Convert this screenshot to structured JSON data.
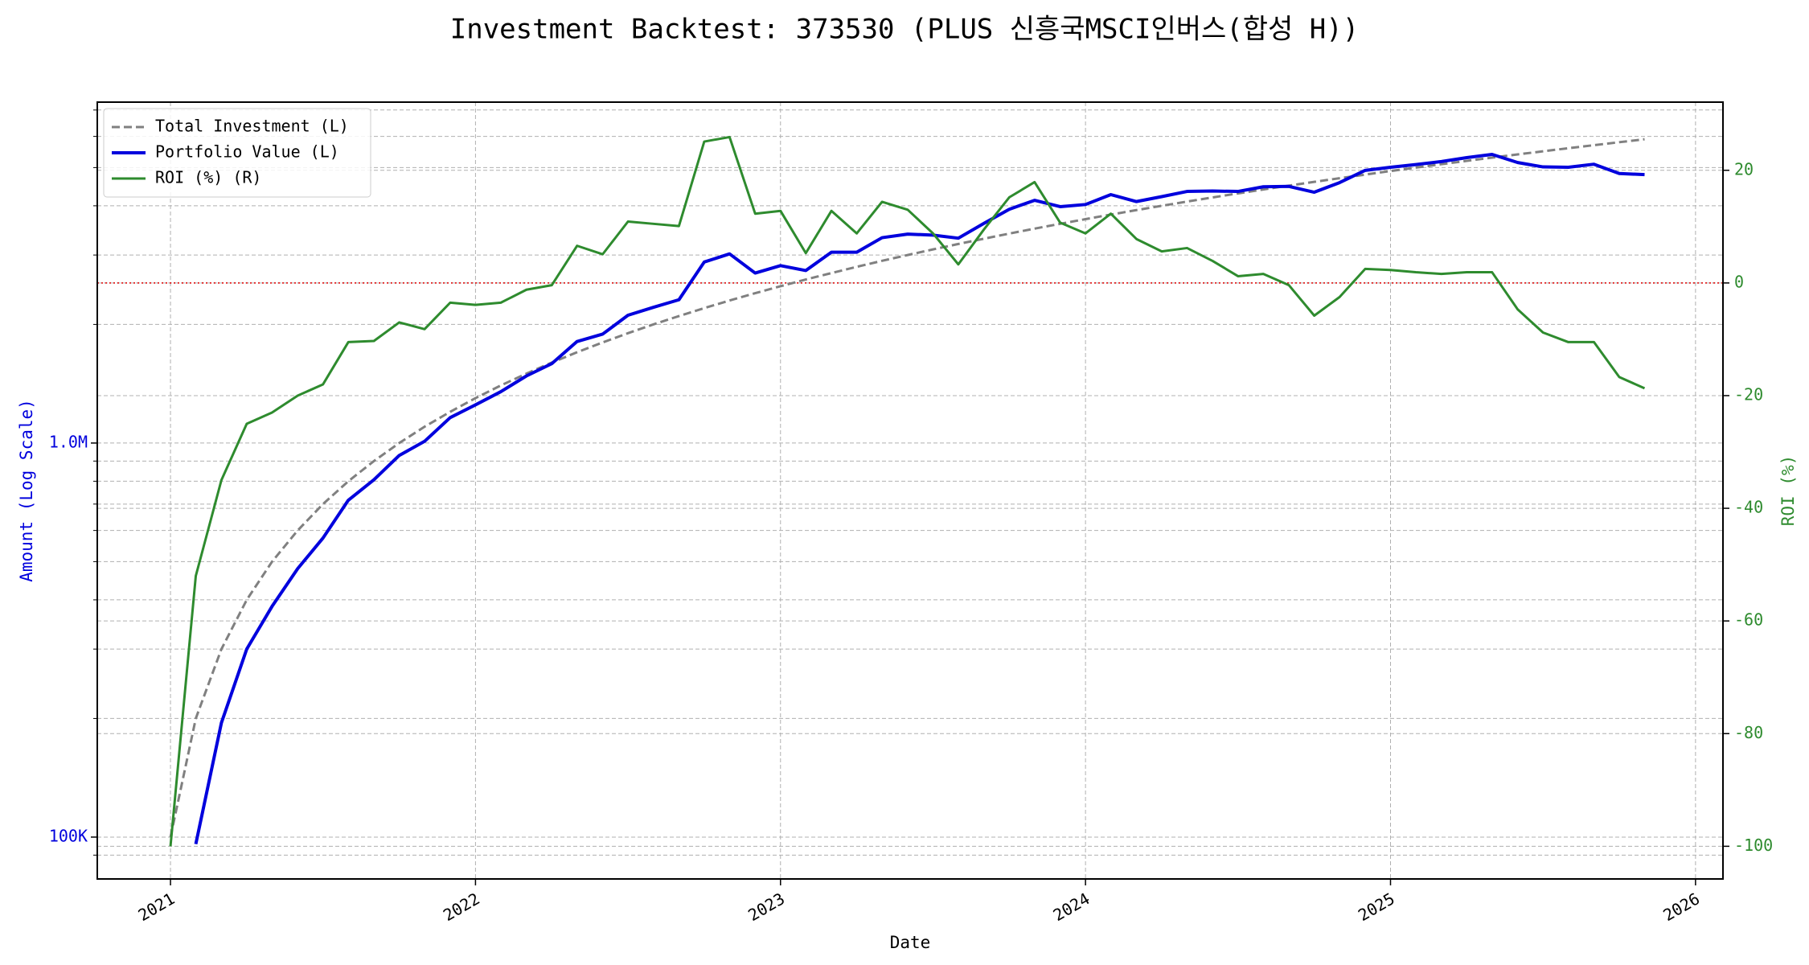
{
  "chart_data": {
    "type": "line",
    "title": "Investment Backtest: 373530 (PLUS 신흥국MSCI인버스(합성 H))",
    "xlabel": "Date",
    "ylabel": "Amount (Log Scale)",
    "y2label": "ROI (%)",
    "ylog": true,
    "grid": true,
    "legend": "upper left",
    "xlim": [
      2020.76,
      2026.09
    ],
    "xticks": [
      2021,
      2022,
      2023,
      2024,
      2025,
      2026
    ],
    "ylim": [
      78300,
      7330000
    ],
    "yticks": [
      {
        "value": 100000,
        "label": "100K"
      },
      {
        "value": 1000000,
        "label": "1.0M"
      }
    ],
    "yticks_minor": [
      90000,
      200000,
      300000,
      400000,
      500000,
      600000,
      700000,
      800000,
      900000,
      2000000,
      3000000,
      4000000,
      5000000,
      6000000,
      7000000
    ],
    "y2lim": [
      -105.8,
      32.1
    ],
    "y2ticks": [
      -100,
      -80,
      -60,
      -40,
      -20,
      0,
      20
    ],
    "reference_line": {
      "axis": "y2",
      "value": 0,
      "color": "#dd0000"
    },
    "x": [
      2021.0,
      2021.083,
      2021.167,
      2021.25,
      2021.333,
      2021.417,
      2021.5,
      2021.583,
      2021.667,
      2021.75,
      2021.833,
      2021.917,
      2022.0,
      2022.083,
      2022.167,
      2022.25,
      2022.333,
      2022.417,
      2022.5,
      2022.583,
      2022.667,
      2022.75,
      2022.833,
      2022.917,
      2023.0,
      2023.083,
      2023.167,
      2023.25,
      2023.333,
      2023.417,
      2023.5,
      2023.583,
      2023.667,
      2023.75,
      2023.833,
      2023.917,
      2024.0,
      2024.083,
      2024.167,
      2024.25,
      2024.333,
      2024.417,
      2024.5,
      2024.583,
      2024.667,
      2024.75,
      2024.833,
      2024.917,
      2025.0,
      2025.083,
      2025.167,
      2025.25,
      2025.333,
      2025.417,
      2025.5,
      2025.583,
      2025.667,
      2025.75,
      2025.833
    ],
    "series": [
      {
        "name": "Total Investment (L)",
        "color": "#808080",
        "linestyle": "dashed",
        "linewidth": 3,
        "axis": "y",
        "values": [
          100000,
          200000,
          300000,
          400000,
          500000,
          600000,
          700000,
          800000,
          900000,
          1000000,
          1100000,
          1200000,
          1300000,
          1400000,
          1500000,
          1600000,
          1700000,
          1800000,
          1900000,
          2000000,
          2100000,
          2200000,
          2300000,
          2400000,
          2500000,
          2600000,
          2700000,
          2800000,
          2900000,
          3000000,
          3100000,
          3200000,
          3300000,
          3400000,
          3500000,
          3600000,
          3700000,
          3800000,
          3900000,
          4000000,
          4100000,
          4200000,
          4300000,
          4400000,
          4500000,
          4600000,
          4700000,
          4800000,
          4900000,
          5000000,
          5100000,
          5200000,
          5300000,
          5400000,
          5500000,
          5600000,
          5700000,
          5800000,
          5900000
        ]
      },
      {
        "name": "Portfolio Value (L)",
        "color": "#0000dd",
        "linestyle": "solid",
        "linewidth": 4,
        "axis": "y",
        "values": [
          null,
          96000,
          195000,
          300000,
          385000,
          480000,
          574000,
          716000,
          807000,
          930000,
          1010000,
          1160000,
          1250000,
          1350000,
          1480000,
          1590000,
          1810000,
          1890000,
          2110000,
          2210000,
          2310000,
          2880000,
          3020000,
          2700000,
          2820000,
          2740000,
          3050000,
          3050000,
          3320000,
          3390000,
          3370000,
          3310000,
          3610000,
          3920000,
          4130000,
          3980000,
          4030000,
          4270000,
          4100000,
          4220000,
          4350000,
          4360000,
          4350000,
          4470000,
          4480000,
          4330000,
          4580000,
          4920000,
          5010000,
          5090000,
          5180000,
          5300000,
          5400000,
          5150000,
          5020000,
          5010000,
          5100000,
          4830000,
          4800000
        ]
      },
      {
        "name": "ROI (%) (R)",
        "color": "#2e8b2e",
        "linestyle": "solid",
        "linewidth": 3,
        "axis": "y2",
        "values": [
          -100,
          -52,
          -35,
          -25,
          -23,
          -20,
          -18,
          -10.5,
          -10.3,
          -7,
          -8.2,
          -3.5,
          -3.9,
          -3.5,
          -1.2,
          -0.4,
          6.6,
          5.1,
          10.9,
          10.5,
          10.1,
          25.1,
          25.9,
          12.3,
          12.8,
          5.3,
          12.8,
          8.8,
          14.4,
          13,
          8.8,
          3.3,
          9.5,
          15.2,
          17.9,
          10.7,
          8.8,
          12.3,
          7.8,
          5.6,
          6.2,
          3.9,
          1.2,
          1.6,
          -0.4,
          -5.8,
          -2.5,
          2.5,
          2.3,
          1.9,
          1.6,
          1.9,
          1.9,
          -4.7,
          -8.8,
          -10.5,
          -10.5,
          -16.7,
          -18.7
        ]
      }
    ]
  }
}
